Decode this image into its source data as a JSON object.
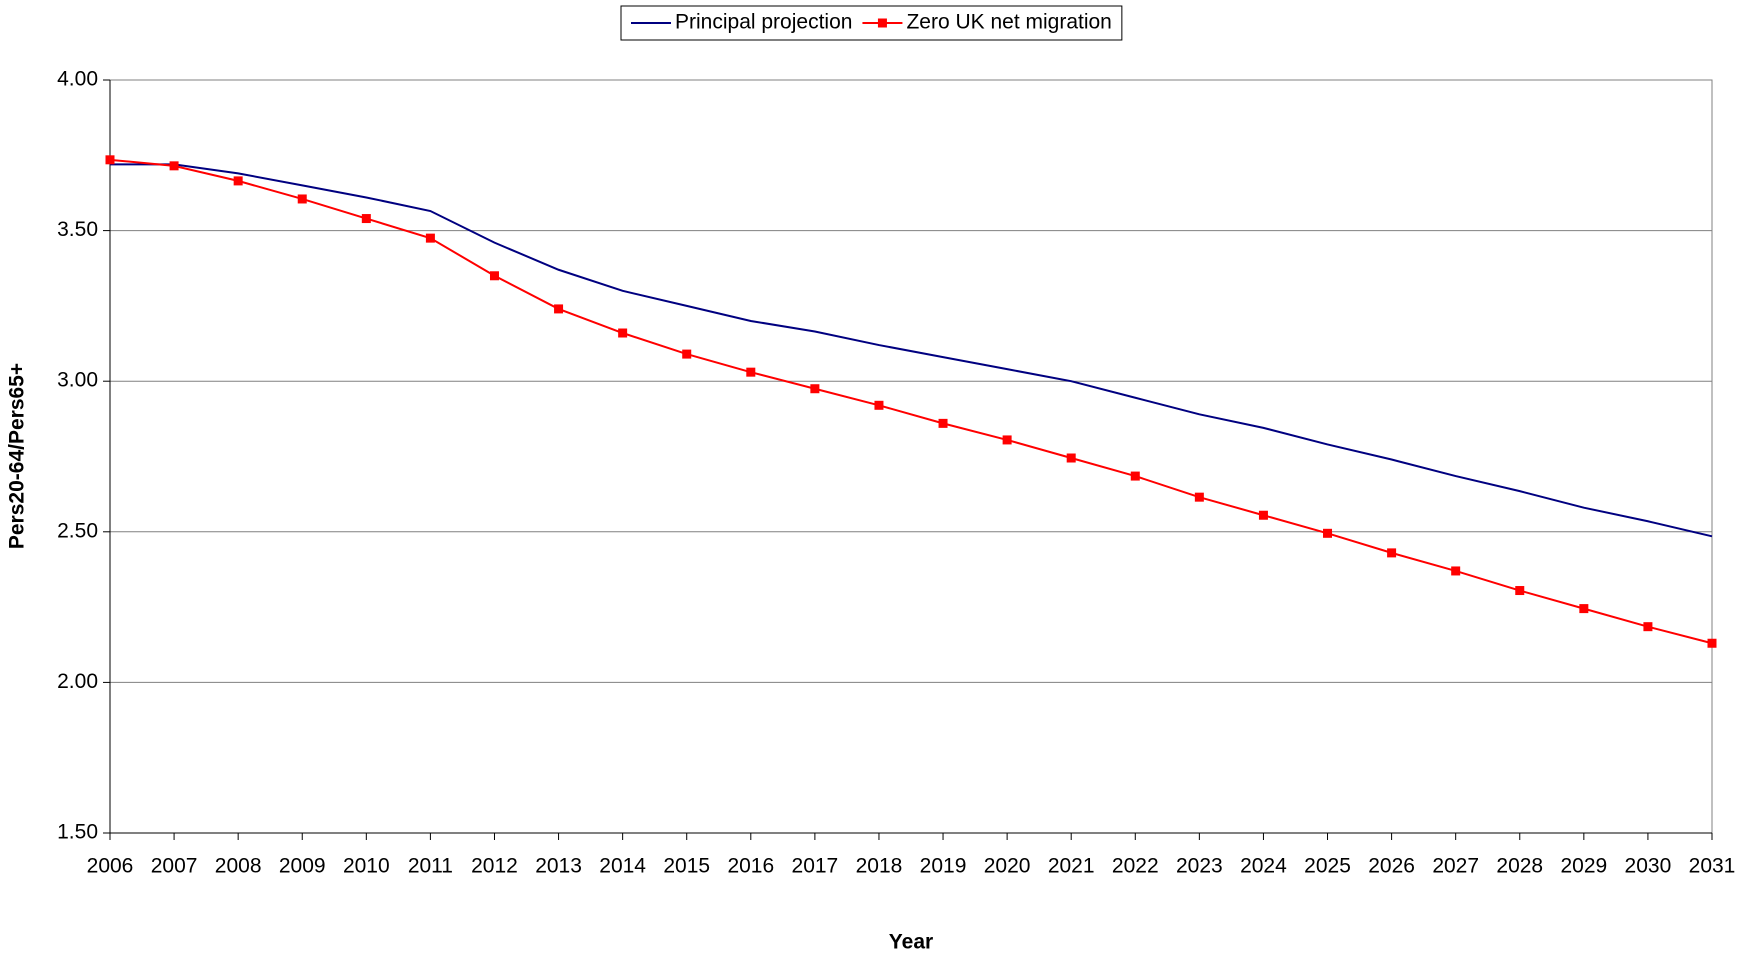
{
  "chart_data": {
    "type": "line",
    "x_label": "Year",
    "y_label": "Pers20-64/Pers65+",
    "categories": [
      "2006",
      "2007",
      "2008",
      "2009",
      "2010",
      "2011",
      "2012",
      "2013",
      "2014",
      "2015",
      "2016",
      "2017",
      "2018",
      "2019",
      "2020",
      "2021",
      "2022",
      "2023",
      "2024",
      "2025",
      "2026",
      "2027",
      "2028",
      "2029",
      "2030",
      "2031"
    ],
    "series": [
      {
        "name": "Principal projection",
        "color": "#000080",
        "values": [
          3.72,
          3.72,
          3.69,
          3.65,
          3.61,
          3.565,
          3.46,
          3.37,
          3.3,
          3.25,
          3.2,
          3.165,
          3.12,
          3.08,
          3.04,
          3.0,
          2.945,
          2.89,
          2.845,
          2.79,
          2.74,
          2.685,
          2.635,
          2.58,
          2.535,
          2.485
        ]
      },
      {
        "name": "Zero UK net migration",
        "color": "#ff0000",
        "marker": "square",
        "values": [
          3.735,
          3.715,
          3.665,
          3.605,
          3.54,
          3.475,
          3.35,
          3.24,
          3.16,
          3.09,
          3.03,
          2.975,
          2.92,
          2.86,
          2.805,
          2.745,
          2.685,
          2.615,
          2.555,
          2.495,
          2.43,
          2.37,
          2.305,
          2.245,
          2.185,
          2.13
        ]
      }
    ],
    "ylim": [
      1.5,
      4.0
    ],
    "yticks": [
      {
        "value": 1.5,
        "label": "1.50"
      },
      {
        "value": 2,
        "label": "2.00"
      },
      {
        "value": 2.5,
        "label": "2.50"
      },
      {
        "value": 3,
        "label": "3.00"
      },
      {
        "value": 3.5,
        "label": "3.50"
      },
      {
        "value": 4,
        "label": "4.00"
      }
    ],
    "grid": true,
    "legend": "top"
  }
}
